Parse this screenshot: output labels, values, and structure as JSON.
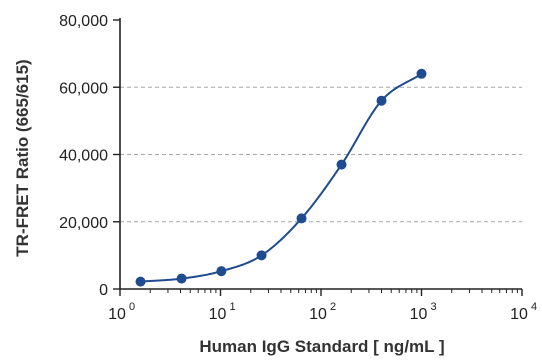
{
  "chart_data": {
    "type": "scatter",
    "title": "",
    "xlabel": "Human IgG Standard  [ ng/mL ]",
    "ylabel": "TR-FRET Ratio (665/615)",
    "x_scale": "log",
    "xlim": [
      1,
      10000
    ],
    "ylim": [
      0,
      80000
    ],
    "x_ticks": [
      {
        "base": "10",
        "exp": "0"
      },
      {
        "base": "10",
        "exp": "1"
      },
      {
        "base": "10",
        "exp": "2"
      },
      {
        "base": "10",
        "exp": "3"
      },
      {
        "base": "10",
        "exp": "4"
      }
    ],
    "y_ticks": [
      "0",
      "20,000",
      "40,000",
      "60,000",
      "80,000"
    ],
    "grid": "horizontal dashed",
    "legend": "none",
    "color": "#1f4b8f",
    "series": [
      {
        "x": [
          1.6,
          4.1,
          10.2,
          25.6,
          64,
          160,
          400,
          1000
        ],
        "y": [
          2200,
          3100,
          5300,
          10000,
          21000,
          37000,
          56000,
          64000
        ],
        "fit": "4PL sigmoid"
      }
    ]
  }
}
